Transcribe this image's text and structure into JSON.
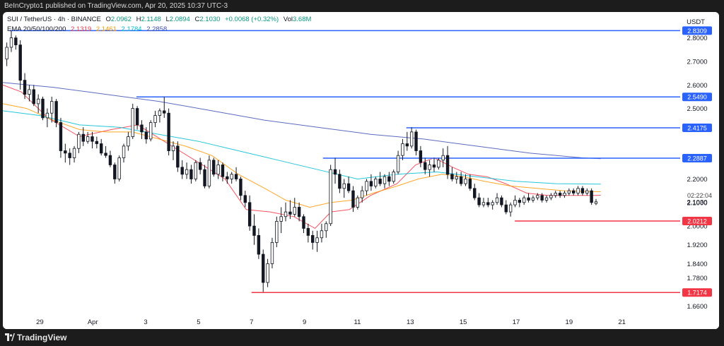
{
  "header": {
    "publish_line": "BeInCrypto1 published on TradingView.com, Apr 20, 2025 10:37 UTC-3"
  },
  "legend": {
    "symbol": "SUI / TetherUS · 4h · BINANCE",
    "open_label": "O",
    "open": "2.0962",
    "high_label": "H",
    "high": "2.1148",
    "low_label": "L",
    "low": "2.0894",
    "close_label": "C",
    "close": "2.1030",
    "change": "+0.0068 (+0.32%)",
    "volume_label": "Vol",
    "volume": "3.68M",
    "ema_title": "EMA 20/50/100/200",
    "ema_values": [
      "2.1319",
      "2.1461",
      "2.1784",
      "2.2858"
    ]
  },
  "currency": "USDT",
  "countdown": "02:22:04",
  "footer": {
    "brand": "TradingView"
  },
  "colors": {
    "up": "#089981",
    "down": "#131722",
    "ema20": "#f23645",
    "ema50": "#ff9800",
    "ema100": "#00bcd4",
    "ema200": "#3f51b5",
    "resistance": "#2962ff",
    "support": "#f23645"
  },
  "chart_data": {
    "type": "line",
    "price_axis": {
      "ylim": [
        1.625,
        2.91
      ],
      "ticks": [
        "2.8000",
        "2.7000",
        "2.6000",
        "2.5000",
        "2.2000",
        "2.1000",
        "2.0000",
        "1.9200",
        "1.8400",
        "1.7800",
        "1.6600"
      ]
    },
    "x_axis": {
      "xlim": [
        27.6,
        22.2
      ],
      "ticks": [
        {
          "label": "29",
          "day": 29
        },
        {
          "label": "Apr",
          "day": 31
        },
        {
          "label": "3",
          "day": 33
        },
        {
          "label": "5",
          "day": 35
        },
        {
          "label": "7",
          "day": 37
        },
        {
          "label": "9",
          "day": 39
        },
        {
          "label": "11",
          "day": 41
        },
        {
          "label": "13",
          "day": 43
        },
        {
          "label": "15",
          "day": 45
        },
        {
          "label": "17",
          "day": 47
        },
        {
          "label": "19",
          "day": 49
        },
        {
          "label": "21",
          "day": 51
        }
      ]
    },
    "levels": [
      {
        "price": 2.8309,
        "label": "2.8309",
        "kind": "resistance",
        "from_day": 27.85
      },
      {
        "price": 2.549,
        "label": "2.5490",
        "kind": "resistance",
        "from_day": 32.65
      },
      {
        "price": 2.4175,
        "label": "2.4175",
        "kind": "resistance",
        "from_day": 42.85
      },
      {
        "price": 2.2887,
        "label": "2.2887",
        "kind": "resistance",
        "from_day": 39.7
      },
      {
        "price": 2.0212,
        "label": "2.0212",
        "kind": "support",
        "from_day": 46.95
      },
      {
        "price": 1.7174,
        "label": "1.7174",
        "kind": "support",
        "from_day": 37.0
      }
    ],
    "last_price": {
      "price": 2.103,
      "label": "2.1030"
    },
    "series": [
      {
        "name": "EMA 20",
        "color_key": "ema20",
        "points": [
          [
            27.6,
            2.6
          ],
          [
            28.3,
            2.57
          ],
          [
            29.3,
            2.46
          ],
          [
            30.5,
            2.38
          ],
          [
            31.7,
            2.41
          ],
          [
            32.7,
            2.43
          ],
          [
            33.7,
            2.36
          ],
          [
            35.0,
            2.27
          ],
          [
            36.0,
            2.2
          ],
          [
            36.8,
            2.07
          ],
          [
            37.7,
            2.06
          ],
          [
            38.6,
            2.04
          ],
          [
            39.4,
            1.99
          ],
          [
            40.0,
            2.06
          ],
          [
            40.7,
            2.07
          ],
          [
            41.5,
            2.13
          ],
          [
            42.5,
            2.18
          ],
          [
            43.2,
            2.26
          ],
          [
            43.9,
            2.29
          ],
          [
            44.6,
            2.25
          ],
          [
            45.2,
            2.22
          ],
          [
            45.9,
            2.21
          ],
          [
            46.6,
            2.18
          ],
          [
            47.4,
            2.14
          ],
          [
            48.2,
            2.13
          ],
          [
            49.2,
            2.13
          ],
          [
            50.0,
            2.13
          ],
          [
            50.2,
            2.131
          ]
        ]
      },
      {
        "name": "EMA 50",
        "color_key": "ema50",
        "points": [
          [
            27.6,
            2.52
          ],
          [
            28.5,
            2.5
          ],
          [
            29.5,
            2.45
          ],
          [
            30.5,
            2.41
          ],
          [
            31.5,
            2.4
          ],
          [
            32.5,
            2.4
          ],
          [
            33.5,
            2.37
          ],
          [
            34.5,
            2.34
          ],
          [
            35.5,
            2.3
          ],
          [
            36.5,
            2.22
          ],
          [
            37.5,
            2.16
          ],
          [
            38.3,
            2.11
          ],
          [
            39.2,
            2.08
          ],
          [
            40.0,
            2.1
          ],
          [
            40.8,
            2.11
          ],
          [
            41.6,
            2.14
          ],
          [
            42.5,
            2.17
          ],
          [
            43.3,
            2.2
          ],
          [
            44.2,
            2.22
          ],
          [
            45.0,
            2.21
          ],
          [
            45.8,
            2.19
          ],
          [
            46.8,
            2.17
          ],
          [
            47.8,
            2.16
          ],
          [
            48.8,
            2.15
          ],
          [
            49.6,
            2.147
          ],
          [
            50.2,
            2.146
          ]
        ]
      },
      {
        "name": "EMA 100",
        "color_key": "ema100",
        "points": [
          [
            27.6,
            2.49
          ],
          [
            29.0,
            2.47
          ],
          [
            30.5,
            2.43
          ],
          [
            32.0,
            2.42
          ],
          [
            33.5,
            2.39
          ],
          [
            35.0,
            2.36
          ],
          [
            36.5,
            2.32
          ],
          [
            38.0,
            2.28
          ],
          [
            39.5,
            2.24
          ],
          [
            41.0,
            2.2
          ],
          [
            42.5,
            2.22
          ],
          [
            44.0,
            2.23
          ],
          [
            45.5,
            2.21
          ],
          [
            47.0,
            2.19
          ],
          [
            48.5,
            2.18
          ],
          [
            50.2,
            2.178
          ]
        ]
      },
      {
        "name": "EMA 200",
        "color_key": "ema200",
        "points": [
          [
            27.6,
            2.61
          ],
          [
            29.5,
            2.59
          ],
          [
            31.5,
            2.56
          ],
          [
            33.5,
            2.53
          ],
          [
            35.5,
            2.49
          ],
          [
            37.5,
            2.45
          ],
          [
            39.5,
            2.42
          ],
          [
            41.5,
            2.39
          ],
          [
            43.5,
            2.37
          ],
          [
            45.5,
            2.34
          ],
          [
            47.5,
            2.31
          ],
          [
            49.5,
            2.29
          ],
          [
            50.2,
            2.286
          ]
        ]
      }
    ],
    "candles": [
      [
        27.75,
        2.71,
        2.78,
        2.68,
        2.76
      ],
      [
        27.92,
        2.76,
        2.83,
        2.74,
        2.8
      ],
      [
        28.09,
        2.8,
        2.81,
        2.75,
        2.77
      ],
      [
        28.26,
        2.77,
        2.79,
        2.58,
        2.62
      ],
      [
        28.43,
        2.62,
        2.65,
        2.54,
        2.56
      ],
      [
        28.6,
        2.56,
        2.6,
        2.53,
        2.58
      ],
      [
        28.77,
        2.58,
        2.6,
        2.51,
        2.52
      ],
      [
        28.94,
        2.52,
        2.56,
        2.48,
        2.54
      ],
      [
        29.11,
        2.54,
        2.55,
        2.45,
        2.46
      ],
      [
        29.28,
        2.46,
        2.5,
        2.42,
        2.48
      ],
      [
        29.45,
        2.48,
        2.55,
        2.44,
        2.53
      ],
      [
        29.62,
        2.53,
        2.54,
        2.42,
        2.44
      ],
      [
        29.79,
        2.44,
        2.46,
        2.29,
        2.32
      ],
      [
        29.96,
        2.32,
        2.35,
        2.27,
        2.31
      ],
      [
        30.13,
        2.31,
        2.33,
        2.26,
        2.29
      ],
      [
        30.3,
        2.29,
        2.34,
        2.27,
        2.33
      ],
      [
        30.47,
        2.33,
        2.4,
        2.31,
        2.39
      ],
      [
        30.64,
        2.39,
        2.42,
        2.34,
        2.36
      ],
      [
        30.81,
        2.36,
        2.4,
        2.35,
        2.38
      ],
      [
        30.98,
        2.38,
        2.4,
        2.33,
        2.36
      ],
      [
        31.15,
        2.36,
        2.38,
        2.33,
        2.35
      ],
      [
        31.32,
        2.35,
        2.37,
        2.3,
        2.31
      ],
      [
        31.49,
        2.31,
        2.34,
        2.29,
        2.3
      ],
      [
        31.66,
        2.3,
        2.32,
        2.25,
        2.26
      ],
      [
        31.83,
        2.26,
        2.27,
        2.18,
        2.2
      ],
      [
        32.0,
        2.2,
        2.3,
        2.19,
        2.29
      ],
      [
        32.17,
        2.29,
        2.35,
        2.27,
        2.34
      ],
      [
        32.34,
        2.34,
        2.4,
        2.32,
        2.38
      ],
      [
        32.51,
        2.38,
        2.52,
        2.37,
        2.5
      ],
      [
        32.68,
        2.5,
        2.51,
        2.41,
        2.43
      ],
      [
        32.85,
        2.43,
        2.45,
        2.37,
        2.4
      ],
      [
        33.02,
        2.4,
        2.42,
        2.35,
        2.37
      ],
      [
        33.19,
        2.37,
        2.45,
        2.36,
        2.44
      ],
      [
        33.36,
        2.44,
        2.49,
        2.42,
        2.47
      ],
      [
        33.53,
        2.47,
        2.5,
        2.44,
        2.49
      ],
      [
        33.7,
        2.49,
        2.55,
        2.46,
        2.48
      ],
      [
        33.87,
        2.48,
        2.5,
        2.3,
        2.32
      ],
      [
        34.04,
        2.32,
        2.36,
        2.28,
        2.34
      ],
      [
        34.21,
        2.34,
        2.36,
        2.23,
        2.25
      ],
      [
        34.38,
        2.25,
        2.28,
        2.2,
        2.22
      ],
      [
        34.55,
        2.22,
        2.27,
        2.2,
        2.24
      ],
      [
        34.72,
        2.24,
        2.26,
        2.18,
        2.2
      ],
      [
        34.89,
        2.2,
        2.28,
        2.19,
        2.27
      ],
      [
        35.06,
        2.27,
        2.29,
        2.22,
        2.24
      ],
      [
        35.23,
        2.24,
        2.26,
        2.16,
        2.17
      ],
      [
        35.4,
        2.17,
        2.3,
        2.16,
        2.28
      ],
      [
        35.57,
        2.28,
        2.29,
        2.21,
        2.22
      ],
      [
        35.74,
        2.22,
        2.28,
        2.2,
        2.26
      ],
      [
        35.91,
        2.26,
        2.27,
        2.19,
        2.21
      ],
      [
        36.08,
        2.21,
        2.23,
        2.18,
        2.2
      ],
      [
        36.25,
        2.2,
        2.23,
        2.18,
        2.22
      ],
      [
        36.42,
        2.22,
        2.25,
        2.19,
        2.2
      ],
      [
        36.59,
        2.2,
        2.21,
        2.11,
        2.13
      ],
      [
        36.76,
        2.13,
        2.15,
        2.08,
        2.1
      ],
      [
        36.93,
        2.1,
        2.13,
        1.98,
        2.0
      ],
      [
        37.1,
        2.0,
        2.05,
        1.92,
        1.96
      ],
      [
        37.27,
        1.96,
        1.99,
        1.86,
        1.88
      ],
      [
        37.44,
        1.88,
        1.9,
        1.72,
        1.76
      ],
      [
        37.61,
        1.76,
        1.86,
        1.74,
        1.84
      ],
      [
        37.78,
        1.84,
        1.95,
        1.82,
        1.93
      ],
      [
        37.95,
        1.93,
        2.04,
        1.91,
        2.02
      ],
      [
        38.12,
        2.02,
        2.08,
        1.97,
        2.04
      ],
      [
        38.29,
        2.04,
        2.1,
        2.02,
        2.06
      ],
      [
        38.46,
        2.06,
        2.11,
        2.03,
        2.05
      ],
      [
        38.63,
        2.05,
        2.12,
        2.04,
        2.08
      ],
      [
        38.8,
        2.08,
        2.1,
        2.02,
        2.04
      ],
      [
        38.97,
        2.04,
        2.05,
        1.97,
        1.99
      ],
      [
        39.14,
        1.99,
        2.01,
        1.93,
        1.96
      ],
      [
        39.31,
        1.96,
        1.98,
        1.9,
        1.93
      ],
      [
        39.48,
        1.93,
        1.98,
        1.89,
        1.95
      ],
      [
        39.65,
        1.95,
        2.01,
        1.93,
        1.98
      ],
      [
        39.82,
        1.98,
        2.02,
        1.95,
        2.01
      ],
      [
        39.99,
        2.01,
        2.26,
        2.0,
        2.24
      ],
      [
        40.16,
        2.24,
        2.29,
        2.18,
        2.22
      ],
      [
        40.33,
        2.22,
        2.24,
        2.14,
        2.16
      ],
      [
        40.5,
        2.16,
        2.2,
        2.12,
        2.18
      ],
      [
        40.67,
        2.18,
        2.21,
        2.14,
        2.15
      ],
      [
        40.84,
        2.15,
        2.17,
        2.06,
        2.08
      ],
      [
        41.01,
        2.08,
        2.13,
        2.07,
        2.12
      ],
      [
        41.18,
        2.12,
        2.17,
        2.1,
        2.15
      ],
      [
        41.35,
        2.15,
        2.2,
        2.13,
        2.19
      ],
      [
        41.52,
        2.19,
        2.22,
        2.15,
        2.17
      ],
      [
        41.69,
        2.17,
        2.21,
        2.16,
        2.2
      ],
      [
        41.86,
        2.2,
        2.23,
        2.17,
        2.18
      ],
      [
        42.03,
        2.18,
        2.22,
        2.16,
        2.21
      ],
      [
        42.2,
        2.21,
        2.23,
        2.17,
        2.19
      ],
      [
        42.37,
        2.19,
        2.24,
        2.18,
        2.23
      ],
      [
        42.54,
        2.23,
        2.32,
        2.22,
        2.3
      ],
      [
        42.71,
        2.3,
        2.37,
        2.28,
        2.35
      ],
      [
        42.88,
        2.35,
        2.4,
        2.32,
        2.34
      ],
      [
        43.05,
        2.34,
        2.42,
        2.33,
        2.4
      ],
      [
        43.22,
        2.4,
        2.41,
        2.3,
        2.32
      ],
      [
        43.39,
        2.32,
        2.34,
        2.25,
        2.27
      ],
      [
        43.56,
        2.27,
        2.29,
        2.22,
        2.24
      ],
      [
        43.73,
        2.24,
        2.28,
        2.21,
        2.26
      ],
      [
        43.9,
        2.26,
        2.29,
        2.23,
        2.25
      ],
      [
        44.07,
        2.25,
        2.29,
        2.24,
        2.28
      ],
      [
        44.24,
        2.28,
        2.33,
        2.25,
        2.3
      ],
      [
        44.41,
        2.3,
        2.34,
        2.2,
        2.22
      ],
      [
        44.58,
        2.22,
        2.25,
        2.19,
        2.2
      ],
      [
        44.75,
        2.2,
        2.23,
        2.18,
        2.21
      ],
      [
        44.92,
        2.21,
        2.23,
        2.17,
        2.18
      ],
      [
        45.09,
        2.18,
        2.22,
        2.17,
        2.2
      ],
      [
        45.26,
        2.2,
        2.22,
        2.15,
        2.16
      ],
      [
        45.43,
        2.16,
        2.18,
        2.11,
        2.12
      ],
      [
        45.6,
        2.12,
        2.14,
        2.08,
        2.09
      ],
      [
        45.77,
        2.09,
        2.12,
        2.08,
        2.1
      ],
      [
        45.94,
        2.1,
        2.12,
        2.08,
        2.09
      ],
      [
        46.11,
        2.09,
        2.11,
        2.07,
        2.1
      ],
      [
        46.28,
        2.1,
        2.14,
        2.09,
        2.12
      ],
      [
        46.45,
        2.12,
        2.13,
        2.08,
        2.09
      ],
      [
        46.62,
        2.09,
        2.11,
        2.05,
        2.06
      ],
      [
        46.79,
        2.06,
        2.1,
        2.04,
        2.09
      ],
      [
        46.96,
        2.09,
        2.13,
        2.08,
        2.11
      ],
      [
        47.13,
        2.11,
        2.12,
        2.08,
        2.1
      ],
      [
        47.3,
        2.1,
        2.13,
        2.09,
        2.12
      ],
      [
        47.47,
        2.12,
        2.14,
        2.1,
        2.11
      ],
      [
        47.64,
        2.11,
        2.13,
        2.1,
        2.12
      ],
      [
        47.81,
        2.12,
        2.14,
        2.11,
        2.13
      ],
      [
        47.98,
        2.13,
        2.14,
        2.1,
        2.11
      ],
      [
        48.15,
        2.11,
        2.13,
        2.1,
        2.12
      ],
      [
        48.32,
        2.12,
        2.14,
        2.11,
        2.13
      ],
      [
        48.49,
        2.13,
        2.15,
        2.12,
        2.14
      ],
      [
        48.66,
        2.14,
        2.15,
        2.12,
        2.13
      ],
      [
        48.83,
        2.13,
        2.15,
        2.12,
        2.14
      ],
      [
        49.0,
        2.14,
        2.16,
        2.13,
        2.15
      ],
      [
        49.17,
        2.15,
        2.16,
        2.13,
        2.14
      ],
      [
        49.34,
        2.14,
        2.17,
        2.13,
        2.16
      ],
      [
        49.51,
        2.16,
        2.17,
        2.13,
        2.14
      ],
      [
        49.68,
        2.14,
        2.16,
        2.13,
        2.15
      ],
      [
        49.85,
        2.15,
        2.16,
        2.09,
        2.1
      ],
      [
        50.02,
        2.096,
        2.115,
        2.089,
        2.103
      ]
    ]
  }
}
